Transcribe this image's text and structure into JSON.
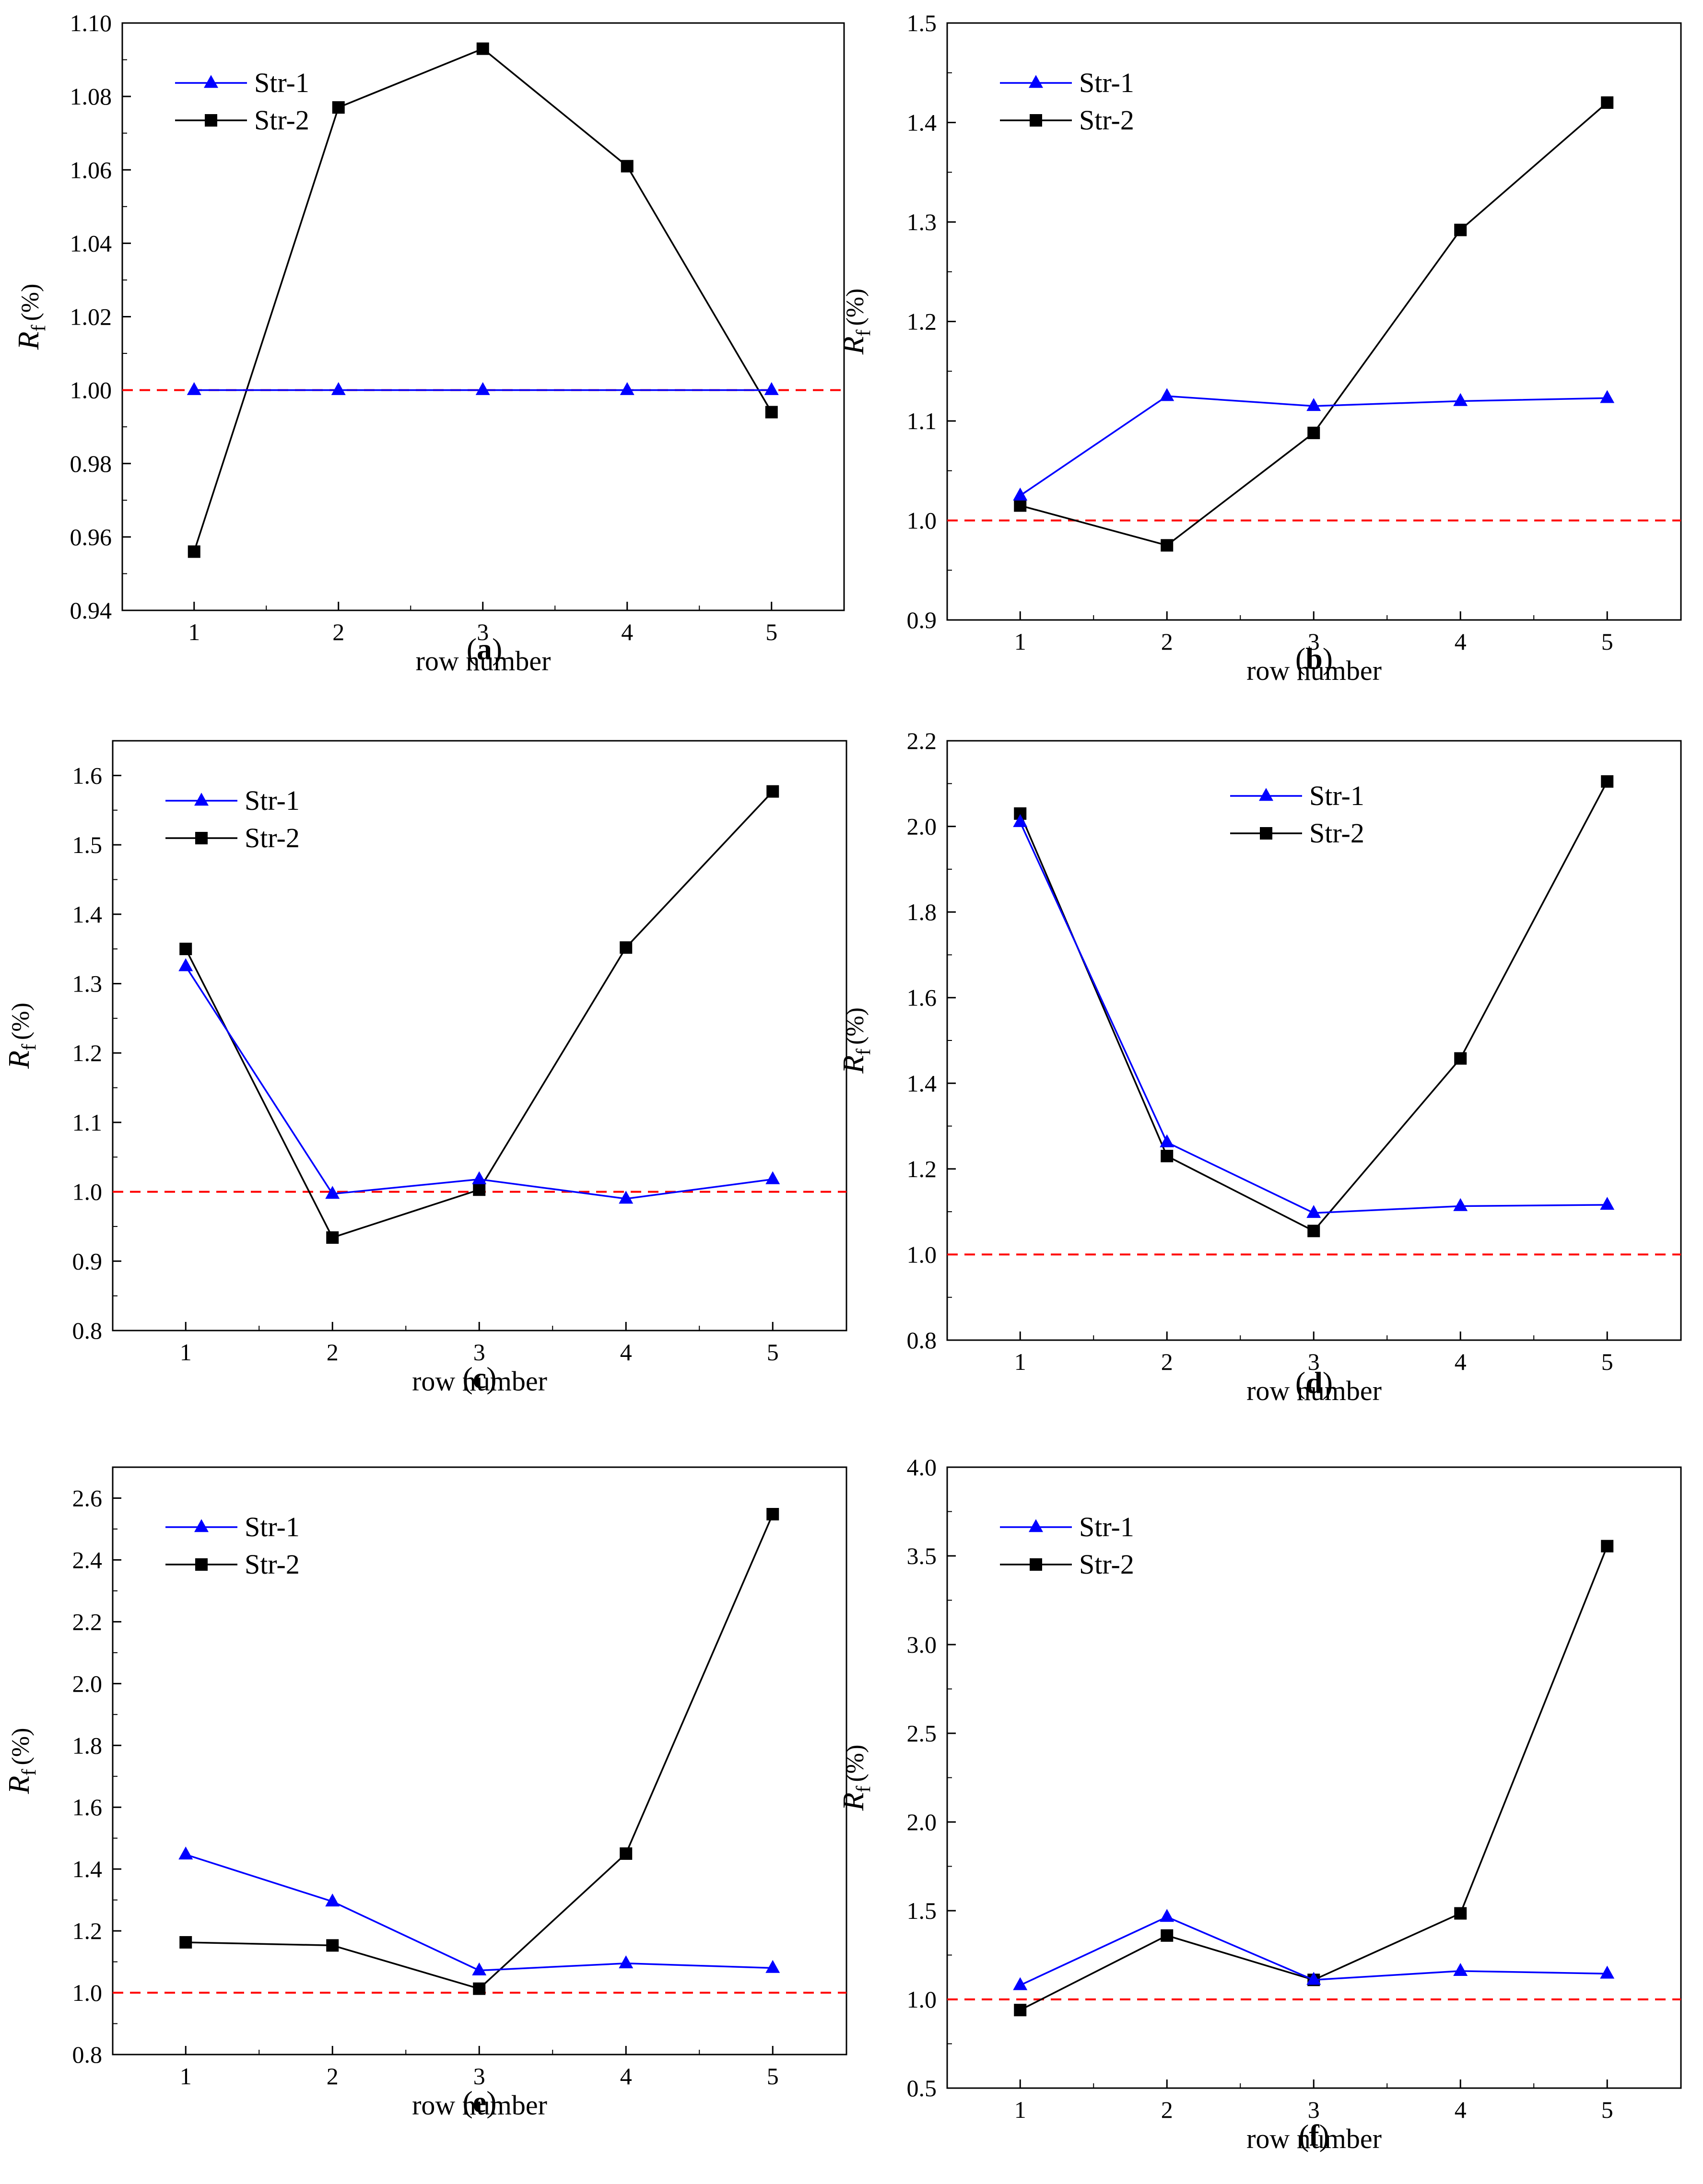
{
  "figure": {
    "xlabel": "row number",
    "ylabel_main": "R",
    "ylabel_sub": "f",
    "ylabel_unit": "(%)"
  },
  "colors": {
    "str1": "#0000ff",
    "str2": "#000000",
    "reference": "#ff0000",
    "axis": "#000000"
  },
  "chart_data": [
    {
      "panel": "(a)",
      "panel_letter": "a",
      "type": "line",
      "x": [
        1,
        2,
        3,
        4,
        5
      ],
      "xticks": [
        "1",
        "2",
        "3",
        "4",
        "5"
      ],
      "ylim": [
        0.94,
        1.1
      ],
      "yticks": [
        "0.94",
        "0.96",
        "0.98",
        "1.00",
        "1.02",
        "1.04",
        "1.06",
        "1.08",
        "1.10"
      ],
      "reference_line": 1.0,
      "legend_position": "top-left",
      "series": [
        {
          "name": "Str-1",
          "marker": "triangle",
          "values": [
            1.0,
            1.0,
            1.0,
            1.0,
            1.0
          ]
        },
        {
          "name": "Str-2",
          "marker": "square",
          "values": [
            0.956,
            1.077,
            1.093,
            1.061,
            0.994
          ]
        }
      ]
    },
    {
      "panel": "(b)",
      "panel_letter": "b",
      "type": "line",
      "x": [
        1,
        2,
        3,
        4,
        5
      ],
      "xticks": [
        "1",
        "2",
        "3",
        "4",
        "5"
      ],
      "ylim": [
        0.9,
        1.5
      ],
      "yticks": [
        "0.9",
        "1.0",
        "1.1",
        "1.2",
        "1.3",
        "1.4",
        "1.5"
      ],
      "reference_line": 1.0,
      "legend_position": "top-left",
      "series": [
        {
          "name": "Str-1",
          "marker": "triangle",
          "values": [
            1.025,
            1.125,
            1.115,
            1.12,
            1.123
          ]
        },
        {
          "name": "Str-2",
          "marker": "square",
          "values": [
            1.015,
            0.975,
            1.088,
            1.292,
            1.42
          ]
        }
      ]
    },
    {
      "panel": "(c)",
      "panel_letter": "c",
      "type": "line",
      "x": [
        1,
        2,
        3,
        4,
        5
      ],
      "xticks": [
        "1",
        "2",
        "3",
        "4",
        "5"
      ],
      "ylim": [
        0.8,
        1.65
      ],
      "yticks": [
        "0.8",
        "0.9",
        "1.0",
        "1.1",
        "1.2",
        "1.3",
        "1.4",
        "1.5",
        "1.6"
      ],
      "reference_line": 1.0,
      "legend_position": "top-left",
      "series": [
        {
          "name": "Str-1",
          "marker": "triangle",
          "values": [
            1.325,
            0.997,
            1.018,
            0.99,
            1.018
          ]
        },
        {
          "name": "Str-2",
          "marker": "square",
          "values": [
            1.35,
            0.934,
            1.003,
            1.352,
            1.577
          ]
        }
      ]
    },
    {
      "panel": "(d)",
      "panel_letter": "d",
      "type": "line",
      "x": [
        1,
        2,
        3,
        4,
        5
      ],
      "xticks": [
        "1",
        "2",
        "3",
        "4",
        "5"
      ],
      "ylim": [
        0.8,
        2.2
      ],
      "yticks": [
        "0.8",
        "1.0",
        "1.2",
        "1.4",
        "1.6",
        "1.8",
        "2.0",
        "2.2"
      ],
      "reference_line": 1.0,
      "legend_position": "top-center",
      "series": [
        {
          "name": "Str-1",
          "marker": "triangle",
          "values": [
            2.01,
            1.262,
            1.097,
            1.113,
            1.116
          ]
        },
        {
          "name": "Str-2",
          "marker": "square",
          "values": [
            2.03,
            1.23,
            1.055,
            1.458,
            2.105
          ]
        }
      ]
    },
    {
      "panel": "(e)",
      "panel_letter": "e",
      "type": "line",
      "x": [
        1,
        2,
        3,
        4,
        5
      ],
      "xticks": [
        "1",
        "2",
        "3",
        "4",
        "5"
      ],
      "ylim": [
        0.8,
        2.7
      ],
      "yticks": [
        "0.8",
        "1.0",
        "1.2",
        "1.4",
        "1.6",
        "1.8",
        "2.0",
        "2.2",
        "2.4",
        "2.6"
      ],
      "reference_line": 1.0,
      "legend_position": "top-left",
      "series": [
        {
          "name": "Str-1",
          "marker": "triangle",
          "values": [
            1.447,
            1.295,
            1.072,
            1.095,
            1.08
          ]
        },
        {
          "name": "Str-2",
          "marker": "square",
          "values": [
            1.163,
            1.153,
            1.013,
            1.45,
            2.548
          ]
        }
      ]
    },
    {
      "panel": "(f)",
      "panel_letter": "f",
      "type": "line",
      "x": [
        1,
        2,
        3,
        4,
        5
      ],
      "xticks": [
        "1",
        "2",
        "3",
        "4",
        "5"
      ],
      "ylim": [
        0.5,
        4.0
      ],
      "yticks": [
        "0.5",
        "1.0",
        "1.5",
        "2.0",
        "2.5",
        "3.0",
        "3.5",
        "4.0"
      ],
      "reference_line": 1.0,
      "legend_position": "top-left",
      "series": [
        {
          "name": "Str-1",
          "marker": "triangle",
          "values": [
            1.08,
            1.465,
            1.11,
            1.16,
            1.145
          ]
        },
        {
          "name": "Str-2",
          "marker": "square",
          "values": [
            0.94,
            1.36,
            1.11,
            1.485,
            3.555
          ]
        }
      ]
    }
  ]
}
